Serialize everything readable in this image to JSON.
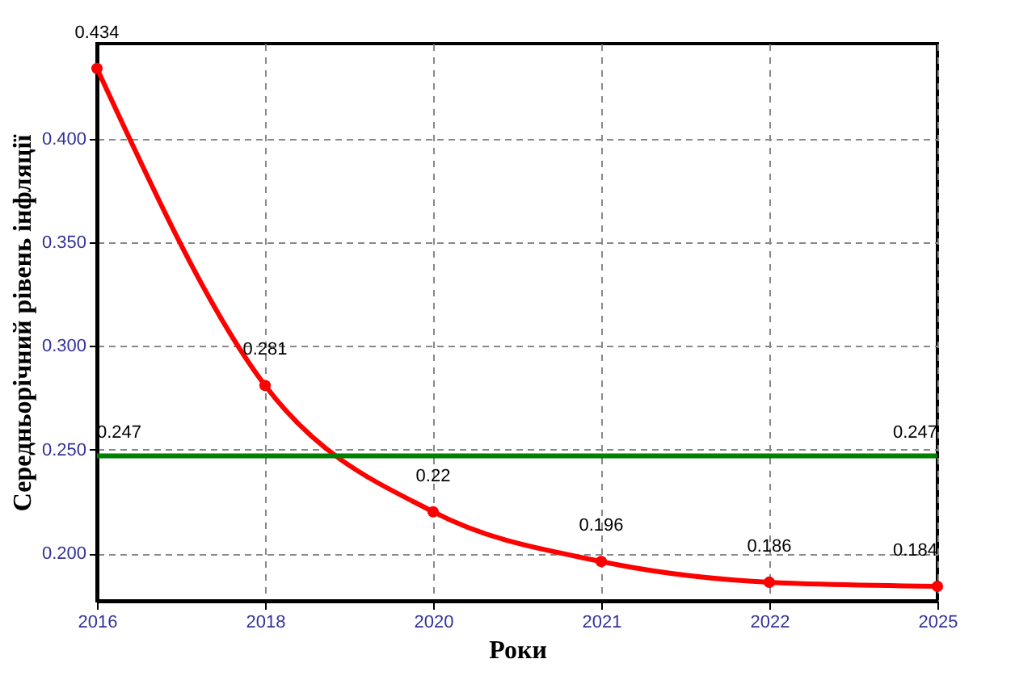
{
  "chart_data": {
    "type": "line",
    "xlabel": "Роки",
    "ylabel": "Середньорічний рівень інфляції",
    "categories": [
      "2016",
      "2018",
      "2020",
      "2021",
      "2022",
      "2025"
    ],
    "series": [
      {
        "color": "#ff0000",
        "values": [
          0.434,
          0.281,
          0.22,
          0.196,
          0.186,
          0.184
        ]
      }
    ],
    "data_labels": true,
    "ylim": [
      0.177,
      0.446
    ],
    "yticks": [
      {
        "value": 0.2,
        "label": "0.200"
      },
      {
        "value": 0.25,
        "label": "0.250"
      },
      {
        "value": 0.3,
        "label": "0.300"
      },
      {
        "value": 0.35,
        "label": "0.350"
      },
      {
        "value": 0.4,
        "label": "0.400"
      }
    ],
    "ref_lines": [
      {
        "axis": "y",
        "value": 0.247,
        "label": "0.247",
        "color": "#008000"
      }
    ],
    "grid": true,
    "marker": "circle",
    "line_style": "solid"
  }
}
